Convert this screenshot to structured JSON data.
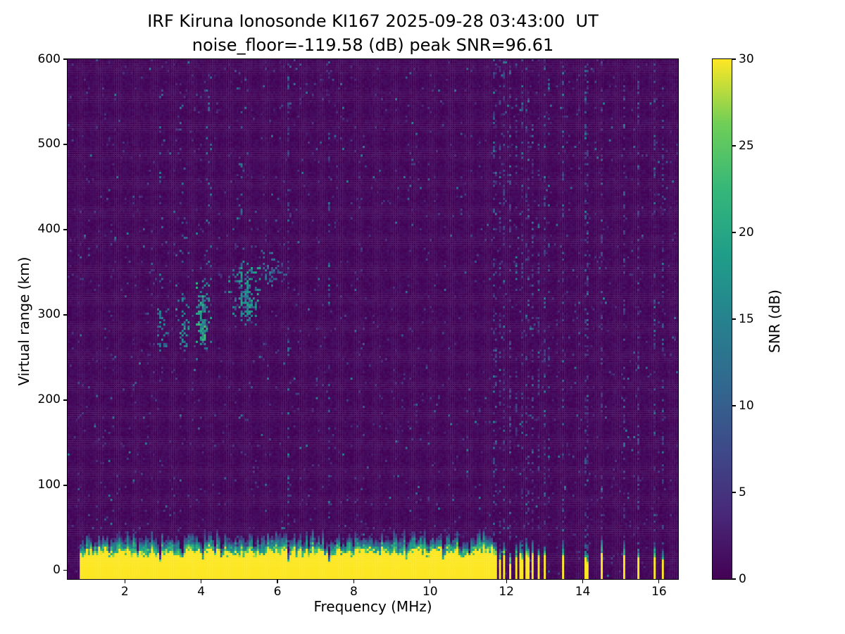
{
  "chart_data": {
    "type": "heatmap",
    "title": "IRF Kiruna Ionosonde KI167 2025-09-28 03:43:00  UT",
    "subtitle": "noise_floor=-119.58 (dB) peak SNR=96.61",
    "xlabel": "Frequency (MHz)",
    "ylabel": "Virtual range (km)",
    "x_range_mhz": [
      0.5,
      16.5
    ],
    "y_range_km": [
      -10,
      600
    ],
    "x_ticks": [
      2,
      4,
      6,
      8,
      10,
      12,
      14,
      16
    ],
    "y_ticks": [
      0,
      100,
      200,
      300,
      400,
      500,
      600
    ],
    "colorbar": {
      "label": "SNR (dB)",
      "min": 0,
      "max": 30,
      "ticks": [
        0,
        5,
        10,
        15,
        20,
        25,
        30
      ],
      "colormap": "viridis"
    },
    "noise_floor_db": -119.58,
    "peak_snr_db": 96.61,
    "background": {
      "snr_range_db": [
        0,
        1.5
      ],
      "speckle_snr_max_db": 14
    },
    "ground_clutter": {
      "freq_range_mhz": [
        0.8,
        11.62
      ],
      "solid_top_km": [
        16,
        26
      ],
      "fringe_top_km": [
        28,
        42
      ],
      "snr_db": 30,
      "notches_mhz_depth": [
        [
          2.33,
          0.5
        ],
        [
          2.92,
          0.45
        ],
        [
          3.5,
          0.45
        ],
        [
          4.05,
          0.5
        ],
        [
          4.55,
          0.6
        ],
        [
          6.3,
          0.25
        ],
        [
          7.35,
          0.35
        ],
        [
          9.4,
          0.6
        ],
        [
          10.35,
          0.55
        ],
        [
          11.05,
          0.5
        ]
      ],
      "isolated_freqs_mhz": [
        11.7,
        11.82,
        11.95,
        12.1,
        12.25,
        12.4,
        12.55,
        12.7,
        12.85,
        13.0,
        13.5,
        14.1,
        14.5,
        15.1,
        15.45,
        15.9,
        16.1
      ]
    },
    "echo_regions": [
      {
        "freq_mhz": [
          2.8,
          3.2
        ],
        "range_km": [
          248,
          315
        ],
        "snr_db": [
          8,
          18
        ],
        "density": 0.45
      },
      {
        "freq_mhz": [
          3.32,
          3.72
        ],
        "range_km": [
          255,
          332
        ],
        "snr_db": [
          9,
          20
        ],
        "density": 0.5
      },
      {
        "freq_mhz": [
          3.85,
          4.3
        ],
        "range_km": [
          258,
          345
        ],
        "snr_db": [
          10,
          22
        ],
        "density": 0.55
      },
      {
        "freq_mhz": [
          4.72,
          5.6
        ],
        "range_km": [
          286,
          365
        ],
        "snr_db": [
          8,
          20
        ],
        "density": 0.5
      },
      {
        "freq_mhz": [
          5.5,
          6.35
        ],
        "range_km": [
          330,
          378
        ],
        "snr_db": [
          6,
          14
        ],
        "density": 0.3
      },
      {
        "freq_mhz": [
          3.38,
          3.55
        ],
        "range_km": [
          262,
          290
        ],
        "snr_db": [
          12,
          20
        ],
        "density": 0.6
      },
      {
        "freq_mhz": [
          3.9,
          4.15
        ],
        "range_km": [
          262,
          295
        ],
        "snr_db": [
          14,
          24
        ],
        "density": 0.7
      },
      {
        "freq_mhz": [
          4.95,
          5.3
        ],
        "range_km": [
          295,
          330
        ],
        "snr_db": [
          12,
          20
        ],
        "density": 0.55
      }
    ],
    "rfi_columns_mhz": [
      6.3,
      7.35,
      11.7,
      11.82,
      11.95,
      12.1,
      12.25,
      12.4,
      12.55,
      12.7,
      12.85,
      13.0,
      13.1,
      13.5,
      14.1,
      14.5,
      15.1,
      15.45,
      15.9,
      16.1
    ],
    "plume_columns_mhz": [
      2.95,
      3.5,
      4.2,
      5.0
    ]
  }
}
